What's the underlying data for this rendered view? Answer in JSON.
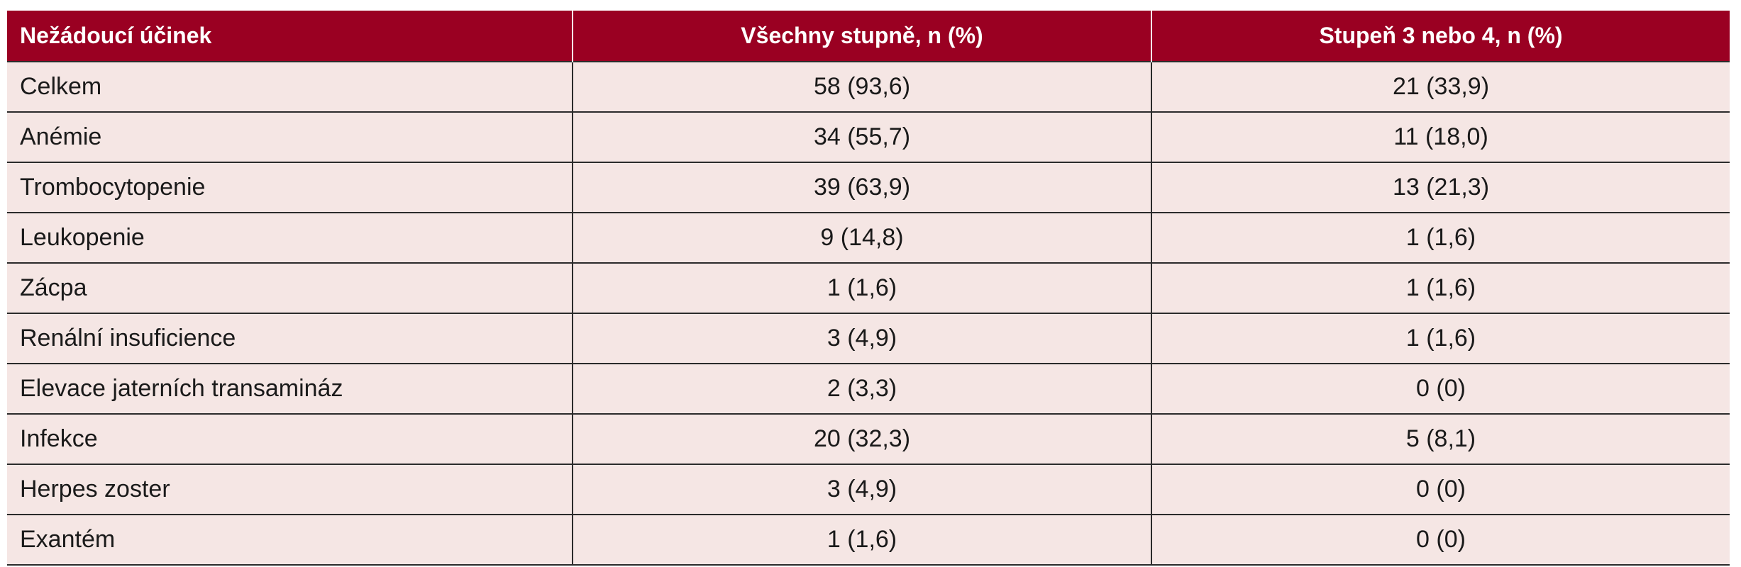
{
  "table": {
    "headers": [
      "Nežádoucí účinek",
      "Všechny stupně, n (%)",
      "Stupeň 3 nebo 4, n (%)"
    ],
    "rows": [
      [
        "Celkem",
        "58 (93,6)",
        "21 (33,9)"
      ],
      [
        "Anémie",
        "34 (55,7)",
        "11 (18,0)"
      ],
      [
        "Trombocytopenie",
        "39 (63,9)",
        "13 (21,3)"
      ],
      [
        "Leukopenie",
        "9 (14,8)",
        "1 (1,6)"
      ],
      [
        "Zácpa",
        "1 (1,6)",
        "1 (1,6)"
      ],
      [
        "Renální insuficience",
        "3 (4,9)",
        "1 (1,6)"
      ],
      [
        "Elevace jaterních transamináz",
        "2 (3,3)",
        "0 (0)"
      ],
      [
        "Infekce",
        "20 (32,3)",
        "5 (8,1)"
      ],
      [
        "Herpes zoster",
        "3 (4,9)",
        "0 (0)"
      ],
      [
        "Exantém",
        "1 (1,6)",
        "0 (0)"
      ]
    ]
  },
  "colors": {
    "header_bg": "#9a0022",
    "row_bg": "#f5e6e4"
  }
}
